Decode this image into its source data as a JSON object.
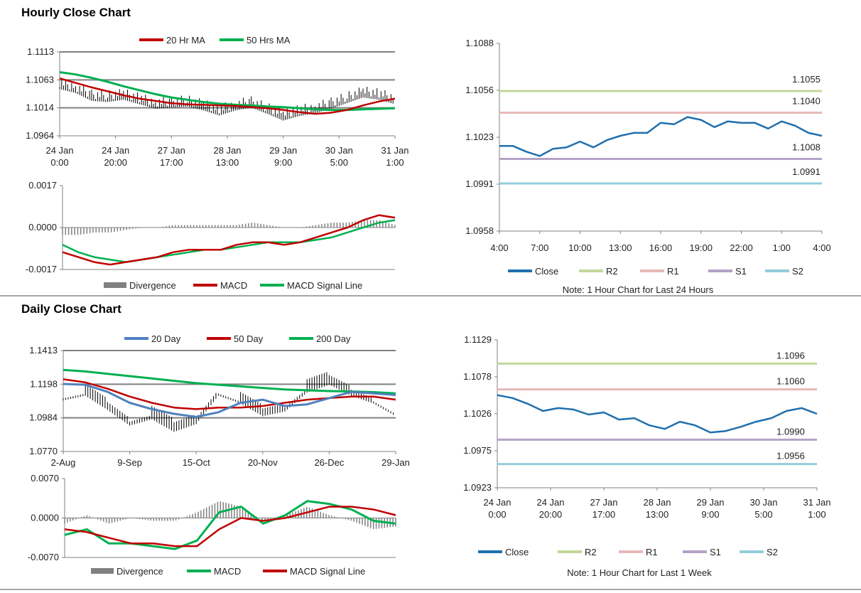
{
  "sections": {
    "hourly_title": "Hourly Close Chart",
    "daily_title": "Daily Close Chart"
  },
  "colors": {
    "ma20hr": "#c00000",
    "ma50hr": "#00b050",
    "d20": "#4f81bd",
    "d50": "#c00000",
    "d200": "#00b050",
    "macd_red": "#c00000",
    "macd_green": "#00b050",
    "close": "#1f6fad",
    "r2": "#c4d79b",
    "r1": "#e6b9b8",
    "s1": "#b3a2c7",
    "s2": "#92cddc",
    "grid": "#808080",
    "divergence": "#808080"
  },
  "chart_data": [
    {
      "id": "hourly-price",
      "type": "line",
      "title": "Hourly Close Chart",
      "legend": [
        "20 Hr MA",
        "50 Hrs MA"
      ],
      "yticks": [
        "1.1113",
        "1.1063",
        "1.1014",
        "1.0964"
      ],
      "ylim": [
        1.0964,
        1.1113
      ],
      "xticks": [
        [
          "24 Jan",
          "0:00"
        ],
        [
          "24 Jan",
          "20:00"
        ],
        [
          "27 Jan",
          "17:00"
        ],
        [
          "28 Jan",
          "13:00"
        ],
        [
          "29 Jan",
          "9:00"
        ],
        [
          "30 Jan",
          "5:00"
        ],
        [
          "31 Jan",
          "1:00"
        ]
      ],
      "series": [
        {
          "name": "20 Hr MA",
          "values": [
            1.1066,
            1.1058,
            1.105,
            1.1043,
            1.1036,
            1.103,
            1.1026,
            1.1022,
            1.102,
            1.1019,
            1.1018,
            1.1017,
            1.1015,
            1.1013,
            1.101,
            1.1006,
            1.1003,
            1.1005,
            1.101,
            1.1018,
            1.1025,
            1.103
          ]
        },
        {
          "name": "50 Hrs MA",
          "values": [
            1.1077,
            1.1073,
            1.1067,
            1.106,
            1.1052,
            1.1045,
            1.1038,
            1.1032,
            1.1028,
            1.1024,
            1.1021,
            1.1019,
            1.1018,
            1.1016,
            1.1015,
            1.1013,
            1.1011,
            1.101,
            1.101,
            1.1011,
            1.1012,
            1.1013
          ]
        },
        {
          "name": "Close",
          "values": [
            1.1053,
            1.1046,
            1.1032,
            1.103,
            1.1034,
            1.1026,
            1.1018,
            1.102,
            1.1022,
            1.1015,
            1.1006,
            1.1015,
            1.102,
            1.1009,
            1.0997,
            1.1005,
            1.101,
            1.1018,
            1.1028,
            1.1038,
            1.1034,
            1.1026
          ]
        }
      ]
    },
    {
      "id": "hourly-macd",
      "type": "line",
      "yticks": [
        "0.0017",
        "0.0000",
        "-0.0017"
      ],
      "ylim": [
        -0.0017,
        0.0017
      ],
      "legend": [
        "Divergence",
        "MACD",
        "MACD Signal Line"
      ],
      "series": [
        {
          "name": "MACD",
          "values": [
            -0.001,
            -0.0012,
            -0.0014,
            -0.0015,
            -0.0014,
            -0.0013,
            -0.0012,
            -0.001,
            -0.0009,
            -0.0009,
            -0.0009,
            -0.0007,
            -0.0006,
            -0.0006,
            -0.0007,
            -0.0006,
            -0.0004,
            -0.0002,
            0.0,
            0.0003,
            0.0005,
            0.0004
          ]
        },
        {
          "name": "MACD Signal Line",
          "values": [
            -0.0007,
            -0.001,
            -0.0012,
            -0.0013,
            -0.0014,
            -0.0013,
            -0.0012,
            -0.0011,
            -0.001,
            -0.0009,
            -0.0009,
            -0.0008,
            -0.0007,
            -0.0006,
            -0.0006,
            -0.0006,
            -0.0005,
            -0.0004,
            -0.0002,
            0.0,
            0.0002,
            0.0003
          ]
        },
        {
          "name": "Divergence",
          "values": [
            -0.0003,
            -0.0003,
            -0.0002,
            -0.0002,
            -0.0001,
            0.0,
            0.0,
            0.0001,
            0.0001,
            0.0001,
            0.0001,
            0.0001,
            0.0002,
            0.0001,
            0.0,
            0.0,
            0.0001,
            0.0002,
            0.0002,
            0.0003,
            0.0003,
            0.0001
          ]
        }
      ]
    },
    {
      "id": "hourly-levels",
      "type": "line",
      "yticks": [
        "1.1088",
        "1.1056",
        "1.1023",
        "1.0991",
        "1.0958"
      ],
      "ylim": [
        1.0958,
        1.1088
      ],
      "xticks": [
        "4:00",
        "7:00",
        "10:00",
        "13:00",
        "16:00",
        "19:00",
        "22:00",
        "1:00",
        "4:00"
      ],
      "levels": [
        {
          "name": "R2",
          "value": 1.1055,
          "label": "1.1055"
        },
        {
          "name": "R1",
          "value": 1.104,
          "label": "1.1040"
        },
        {
          "name": "S1",
          "value": 1.1008,
          "label": "1.1008"
        },
        {
          "name": "S2",
          "value": 1.0991,
          "label": "1.0991"
        }
      ],
      "series": [
        {
          "name": "Close",
          "values": [
            1.1017,
            1.1017,
            1.1013,
            1.101,
            1.1015,
            1.1016,
            1.102,
            1.1016,
            1.1021,
            1.1024,
            1.1026,
            1.1026,
            1.1033,
            1.1032,
            1.1037,
            1.1035,
            1.103,
            1.1034,
            1.1033,
            1.1033,
            1.1029,
            1.1034,
            1.1031,
            1.1026,
            1.1024
          ]
        }
      ],
      "legend": [
        "Close",
        "R2",
        "R1",
        "S1",
        "S2"
      ],
      "note": "Note: 1 Hour Chart for Last 24 Hours"
    },
    {
      "id": "daily-price",
      "type": "line",
      "title": "Daily Close Chart",
      "legend": [
        "20 Day",
        "50 Day",
        "200 Day"
      ],
      "yticks": [
        "1.1413",
        "1.1198",
        "1.0984",
        "1.0770"
      ],
      "ylim": [
        1.077,
        1.1413
      ],
      "xticks": [
        "2-Aug",
        "9-Sep",
        "15-Oct",
        "20-Nov",
        "26-Dec",
        "29-Jan"
      ],
      "series": [
        {
          "name": "20 Day",
          "values": [
            1.12,
            1.1195,
            1.115,
            1.108,
            1.104,
            1.101,
            1.099,
            1.102,
            1.108,
            1.11,
            1.106,
            1.107,
            1.111,
            1.115,
            1.114,
            1.113
          ]
        },
        {
          "name": "50 Day",
          "values": [
            1.123,
            1.121,
            1.117,
            1.112,
            1.108,
            1.105,
            1.104,
            1.105,
            1.105,
            1.106,
            1.108,
            1.11,
            1.111,
            1.112,
            1.112,
            1.11
          ]
        },
        {
          "name": "200 Day",
          "values": [
            1.129,
            1.128,
            1.1265,
            1.125,
            1.1235,
            1.122,
            1.1205,
            1.1195,
            1.1185,
            1.1175,
            1.1165,
            1.116,
            1.1155,
            1.1152,
            1.1148,
            1.114
          ]
        },
        {
          "name": "Close",
          "values": [
            1.112,
            1.115,
            1.106,
            1.096,
            1.1,
            1.092,
            1.097,
            1.115,
            1.11,
            1.102,
            1.105,
            1.117,
            1.122,
            1.115,
            1.11,
            1.102
          ]
        }
      ]
    },
    {
      "id": "daily-macd",
      "type": "line",
      "yticks": [
        "0.0070",
        "0.0000",
        "-0.0070"
      ],
      "ylim": [
        -0.007,
        0.007
      ],
      "legend": [
        "Divergence",
        "MACD",
        "MACD Signal Line"
      ],
      "series": [
        {
          "name": "MACD",
          "values": [
            -0.003,
            -0.002,
            -0.0045,
            -0.0045,
            -0.005,
            -0.0055,
            -0.004,
            0.001,
            0.002,
            -0.001,
            0.0005,
            0.003,
            0.0025,
            0.0015,
            -0.0005,
            -0.001
          ]
        },
        {
          "name": "MACD Signal Line",
          "values": [
            -0.002,
            -0.0025,
            -0.0035,
            -0.0045,
            -0.0045,
            -0.005,
            -0.005,
            -0.002,
            0.0,
            -0.0005,
            0.0,
            0.001,
            0.002,
            0.002,
            0.0015,
            0.0005
          ]
        },
        {
          "name": "Divergence",
          "values": [
            -0.001,
            0.0005,
            -0.001,
            0.0,
            -0.0005,
            -0.0005,
            0.001,
            0.003,
            0.002,
            -0.0005,
            0.0005,
            0.002,
            0.0005,
            -0.0005,
            -0.002,
            -0.0015
          ]
        }
      ]
    },
    {
      "id": "daily-levels",
      "type": "line",
      "yticks": [
        "1.1129",
        "1.1078",
        "1.1026",
        "1.0975",
        "1.0923"
      ],
      "ylim": [
        1.0923,
        1.1129
      ],
      "xticks": [
        [
          "24 Jan",
          "0:00"
        ],
        [
          "24 Jan",
          "20:00"
        ],
        [
          "27 Jan",
          "17:00"
        ],
        [
          "28 Jan",
          "13:00"
        ],
        [
          "29 Jan",
          "9:00"
        ],
        [
          "30 Jan",
          "5:00"
        ],
        [
          "31 Jan",
          "1:00"
        ]
      ],
      "levels": [
        {
          "name": "R2",
          "value": 1.1096,
          "label": "1.1096"
        },
        {
          "name": "R1",
          "value": 1.106,
          "label": "1.1060"
        },
        {
          "name": "S1",
          "value": 1.099,
          "label": "1.0990"
        },
        {
          "name": "S2",
          "value": 1.0956,
          "label": "1.0956"
        }
      ],
      "series": [
        {
          "name": "Close",
          "values": [
            1.1052,
            1.1048,
            1.104,
            1.103,
            1.1034,
            1.1032,
            1.1025,
            1.1028,
            1.1018,
            1.102,
            1.101,
            1.1005,
            1.1015,
            1.101,
            1.1,
            1.1002,
            1.1008,
            1.1015,
            1.102,
            1.103,
            1.1034,
            1.1026
          ]
        }
      ],
      "legend": [
        "Close",
        "R2",
        "R1",
        "S1",
        "S2"
      ],
      "note": "Note: 1 Hour Chart for Last 1 Week"
    }
  ]
}
